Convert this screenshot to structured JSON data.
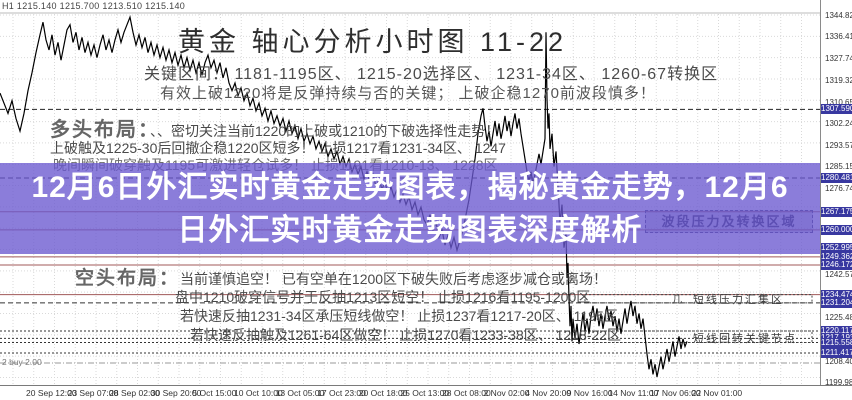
{
  "header": {
    "ohlc": "H1 1215.140 1215.700 1213.510 1215.140",
    "title": "黄金 轴心分析小时图 11-22",
    "key_zones": "关键区间： 1181-1195区、 1215-20选择区、 1231-34区、 1260-67转换区",
    "note": "有效上破1220将是反弹持续与否的关键； 上破企稳1270前波段慎多！"
  },
  "texts": {
    "bull": {
      "heading": "多头布局：",
      "line1": "、、密切关注当前1220的上破或1210的下破选择性走势！",
      "line2": "上破触及1225-30后回撤企稳1220区短多！ 止损1217看1231-34区、 1247",
      "line3": "晚间瞬间破穿触及1195可激进轻仓试多！ 止损1191看1210-13、 1228区"
    },
    "bear": {
      "heading": "空头布局：",
      "line1": "当前谨慎追空！ 已有空单在1200区下破失败后考虑逐步减仓或离场！",
      "line2": "盘中1210破穿信号并于反抽1213区短空！ 止损1216看1195-1200区",
      "line3": "若快速反抽1231-34区承压短线做空！ 止损1237看1217-20区、 1195区",
      "line4": "若快速反抽触及1261-64区做空！ 止损1270看1233-38区、 1218-22区"
    }
  },
  "banner": {
    "line1": "12月6日外汇实时黄金走势图表，揭秘黄金走势，12月6",
    "line2": "日外汇实时黄金走势图表深度解析",
    "color": "rgba(106,88,208,0.78)"
  },
  "annotations": {
    "zone_box": "波段压力及转换区域",
    "pressure": "短线压力汇集区",
    "pressure_glyph": "几",
    "pivot": "短线回转关键节点"
  },
  "trade": {
    "label": "2 buy 2.00",
    "price": 1207.5
  },
  "colors": {
    "grid": "#d9d9d9",
    "price_line": "#000000",
    "tag_navy": "#3838a0",
    "sr_maroon": "#a05858",
    "banner_purple": "rgba(106,88,208,0.78)"
  },
  "chart_data": {
    "type": "line",
    "title": "黄金 轴心分析小时图 11-22",
    "instrument_timeframe": "H1",
    "ylim": [
      1198.8,
      1350.75
    ],
    "grid": true,
    "y_ticks": [
      1344.825,
      1336.41,
      1327.74,
      1319.325,
      1310.655,
      1302.24,
      1293.57,
      1285.155,
      1276.74,
      1242.57,
      1225.485,
      1208.4,
      1199.985
    ],
    "price_tags": [
      "1307.590",
      "1280.481",
      "1267.175",
      "1260.000",
      "1252.995",
      "1249.362",
      "1246.172",
      "1234.474",
      "1231.204",
      "1220.117",
      "1217.193",
      "1215.558",
      "1211.417"
    ],
    "x_labels": [
      "20 Sep 12:00",
      "23 Sep 07:00",
      "28 Sep 02:00",
      "30 Sep 20:00",
      "5 Oct 15:00",
      "10 Oct 10:00",
      "13 Oct 05:00",
      "17 Oct 23:00",
      "20 Oct 18:00",
      "25 Oct 13:00",
      "28 Oct 08:00",
      "2 Nov 02:00",
      "4 Nov 20:00",
      "9 Nov 16:00",
      "14 Nov 11:00",
      "17 Nov 06:00",
      "22 Nov 01:00"
    ],
    "sr_lines": [
      {
        "price": 1307.59,
        "style": "dash",
        "color": "#222222"
      },
      {
        "price": 1280.481,
        "style": "dash",
        "color": "#222222"
      },
      {
        "price": 1267.175,
        "style": "solid",
        "color": "#a05858"
      },
      {
        "price": 1260.0,
        "style": "solid",
        "color": "#a05858"
      },
      {
        "price": 1249.362,
        "style": "solid",
        "color": "#a05858"
      },
      {
        "price": 1246.172,
        "style": "solid",
        "color": "#a05858"
      },
      {
        "price": 1234.474,
        "style": "solid",
        "color": "#a05858"
      },
      {
        "price": 1231.204,
        "style": "dash",
        "color": "#333333"
      },
      {
        "price": 1220.117,
        "style": "dot",
        "color": "#333333"
      },
      {
        "price": 1217.193,
        "style": "dot",
        "color": "#333333"
      },
      {
        "price": 1215.558,
        "style": "dot",
        "color": "#333333"
      },
      {
        "price": 1211.417,
        "style": "dot",
        "color": "#333333"
      },
      {
        "price": 1207.5,
        "style": "dashdot",
        "color": "#999999"
      }
    ],
    "series": [
      {
        "name": "XAUUSD price (x in plot px, y in USD)",
        "x_unit": "px",
        "points": [
          [
            0,
            1314
          ],
          [
            4,
            1310
          ],
          [
            8,
            1306
          ],
          [
            12,
            1311
          ],
          [
            16,
            1304
          ],
          [
            20,
            1299
          ],
          [
            24,
            1306
          ],
          [
            28,
            1315
          ],
          [
            32,
            1322
          ],
          [
            36,
            1330
          ],
          [
            40,
            1337
          ],
          [
            43,
            1342
          ],
          [
            46,
            1335
          ],
          [
            49,
            1331
          ],
          [
            52,
            1337
          ],
          [
            55,
            1329
          ],
          [
            58,
            1334
          ],
          [
            61,
            1327
          ],
          [
            64,
            1333
          ],
          [
            67,
            1339
          ],
          [
            70,
            1341
          ],
          [
            73,
            1334
          ],
          [
            76,
            1338
          ],
          [
            79,
            1331
          ],
          [
            82,
            1336
          ],
          [
            85,
            1330
          ],
          [
            88,
            1334
          ],
          [
            91,
            1329
          ],
          [
            94,
            1333
          ],
          [
            97,
            1328
          ],
          [
            100,
            1333
          ],
          [
            103,
            1337
          ],
          [
            106,
            1331
          ],
          [
            109,
            1335
          ],
          [
            112,
            1330
          ],
          [
            115,
            1335
          ],
          [
            118,
            1339
          ],
          [
            121,
            1334
          ],
          [
            124,
            1338
          ],
          [
            127,
            1341
          ],
          [
            130,
            1344
          ],
          [
            133,
            1338
          ],
          [
            136,
            1333
          ],
          [
            139,
            1337
          ],
          [
            142,
            1332
          ],
          [
            145,
            1336
          ],
          [
            148,
            1330
          ],
          [
            151,
            1334
          ],
          [
            154,
            1329
          ],
          [
            157,
            1333
          ],
          [
            160,
            1328
          ],
          [
            163,
            1332
          ],
          [
            166,
            1327
          ],
          [
            169,
            1331
          ],
          [
            172,
            1326
          ],
          [
            175,
            1330
          ],
          [
            178,
            1325
          ],
          [
            181,
            1329
          ],
          [
            184,
            1324
          ],
          [
            187,
            1328
          ],
          [
            190,
            1323
          ],
          [
            193,
            1327
          ],
          [
            196,
            1322
          ],
          [
            199,
            1326
          ],
          [
            202,
            1321
          ],
          [
            205,
            1326
          ],
          [
            208,
            1329
          ],
          [
            211,
            1324
          ],
          [
            214,
            1327
          ],
          [
            217,
            1322
          ],
          [
            220,
            1326
          ],
          [
            223,
            1320
          ],
          [
            226,
            1324
          ],
          [
            229,
            1318
          ],
          [
            232,
            1315
          ],
          [
            235,
            1318
          ],
          [
            238,
            1313
          ],
          [
            241,
            1316
          ],
          [
            244,
            1311
          ],
          [
            247,
            1314
          ],
          [
            250,
            1309
          ],
          [
            253,
            1312
          ],
          [
            256,
            1307
          ],
          [
            259,
            1310
          ],
          [
            262,
            1305
          ],
          [
            265,
            1308
          ],
          [
            268,
            1303
          ],
          [
            271,
            1307
          ],
          [
            274,
            1302
          ],
          [
            277,
            1305
          ],
          [
            280,
            1301
          ],
          [
            283,
            1304
          ],
          [
            286,
            1299
          ],
          [
            289,
            1303
          ],
          [
            292,
            1298
          ],
          [
            295,
            1301
          ],
          [
            298,
            1296
          ],
          [
            301,
            1300
          ],
          [
            304,
            1295
          ],
          [
            307,
            1298
          ],
          [
            310,
            1294
          ],
          [
            313,
            1297
          ],
          [
            316,
            1292
          ],
          [
            319,
            1295
          ],
          [
            322,
            1291
          ],
          [
            325,
            1294
          ],
          [
            328,
            1289
          ],
          [
            331,
            1292
          ],
          [
            334,
            1288
          ],
          [
            337,
            1291
          ],
          [
            340,
            1286
          ],
          [
            343,
            1289
          ],
          [
            346,
            1285
          ],
          [
            349,
            1288
          ],
          [
            352,
            1283
          ],
          [
            355,
            1286
          ],
          [
            358,
            1282
          ],
          [
            361,
            1285
          ],
          [
            364,
            1280
          ],
          [
            367,
            1283
          ],
          [
            370,
            1279
          ],
          [
            373,
            1282
          ],
          [
            376,
            1277
          ],
          [
            379,
            1280
          ],
          [
            382,
            1276
          ],
          [
            385,
            1279
          ],
          [
            388,
            1274
          ],
          [
            391,
            1277
          ],
          [
            394,
            1273
          ],
          [
            397,
            1276
          ],
          [
            400,
            1271
          ],
          [
            403,
            1274
          ],
          [
            406,
            1270
          ],
          [
            409,
            1273
          ],
          [
            412,
            1268
          ],
          [
            415,
            1271
          ],
          [
            418,
            1266
          ],
          [
            421,
            1269
          ],
          [
            424,
            1264
          ],
          [
            427,
            1262
          ],
          [
            430,
            1266
          ],
          [
            433,
            1260
          ],
          [
            436,
            1263
          ],
          [
            439,
            1257
          ],
          [
            442,
            1260
          ],
          [
            445,
            1254
          ],
          [
            448,
            1258
          ],
          [
            451,
            1253
          ],
          [
            454,
            1257
          ],
          [
            457,
            1252
          ],
          [
            460,
            1256
          ],
          [
            463,
            1260
          ],
          [
            466,
            1266
          ],
          [
            469,
            1272
          ],
          [
            472,
            1280
          ],
          [
            475,
            1288
          ],
          [
            478,
            1298
          ],
          [
            481,
            1305
          ],
          [
            483,
            1308
          ],
          [
            485,
            1301
          ],
          [
            487,
            1295
          ],
          [
            489,
            1299
          ],
          [
            491,
            1293
          ],
          [
            493,
            1298
          ],
          [
            495,
            1303
          ],
          [
            497,
            1297
          ],
          [
            499,
            1302
          ],
          [
            501,
            1296
          ],
          [
            503,
            1300
          ],
          [
            505,
            1305
          ],
          [
            507,
            1299
          ],
          [
            509,
            1303
          ],
          [
            511,
            1297
          ],
          [
            513,
            1302
          ],
          [
            515,
            1306
          ],
          [
            517,
            1300
          ],
          [
            519,
            1304
          ],
          [
            521,
            1298
          ],
          [
            523,
            1293
          ],
          [
            525,
            1288
          ],
          [
            527,
            1283
          ],
          [
            529,
            1279
          ],
          [
            531,
            1283
          ],
          [
            533,
            1278
          ],
          [
            535,
            1282
          ],
          [
            537,
            1286
          ],
          [
            539,
            1290
          ],
          [
            541,
            1286
          ],
          [
            543,
            1291
          ],
          [
            545,
            1296
          ],
          [
            546,
            1338
          ],
          [
            547,
            1312
          ],
          [
            548,
            1300
          ],
          [
            549,
            1306
          ],
          [
            550,
            1292
          ],
          [
            552,
            1298
          ],
          [
            554,
            1285
          ],
          [
            556,
            1291
          ],
          [
            558,
            1277
          ],
          [
            560,
            1263
          ],
          [
            562,
            1270
          ],
          [
            564,
            1253
          ],
          [
            566,
            1259
          ],
          [
            567,
            1241
          ],
          [
            568,
            1247
          ],
          [
            569,
            1233
          ],
          [
            570,
            1222
          ],
          [
            571,
            1230
          ],
          [
            572,
            1216
          ],
          [
            573,
            1225
          ],
          [
            575,
            1217
          ],
          [
            577,
            1223
          ],
          [
            579,
            1215
          ],
          [
            581,
            1221
          ],
          [
            583,
            1227
          ],
          [
            585,
            1220
          ],
          [
            587,
            1225
          ],
          [
            589,
            1219
          ],
          [
            591,
            1226
          ],
          [
            593,
            1230
          ],
          [
            595,
            1224
          ],
          [
            597,
            1229
          ],
          [
            599,
            1222
          ],
          [
            601,
            1227
          ],
          [
            603,
            1221
          ],
          [
            605,
            1226
          ],
          [
            607,
            1230
          ],
          [
            609,
            1224
          ],
          [
            611,
            1228
          ],
          [
            613,
            1222
          ],
          [
            615,
            1226
          ],
          [
            617,
            1220
          ],
          [
            619,
            1225
          ],
          [
            621,
            1219
          ],
          [
            623,
            1224
          ],
          [
            625,
            1229
          ],
          [
            627,
            1223
          ],
          [
            629,
            1228
          ],
          [
            631,
            1232
          ],
          [
            633,
            1226
          ],
          [
            635,
            1230
          ],
          [
            637,
            1223
          ],
          [
            639,
            1227
          ],
          [
            641,
            1221
          ],
          [
            643,
            1225
          ],
          [
            645,
            1218
          ],
          [
            647,
            1211
          ],
          [
            649,
            1205
          ],
          [
            651,
            1209
          ],
          [
            653,
            1203
          ],
          [
            655,
            1207
          ],
          [
            657,
            1202
          ],
          [
            659,
            1206
          ],
          [
            661,
            1210
          ],
          [
            663,
            1205
          ],
          [
            665,
            1209
          ],
          [
            667,
            1213
          ],
          [
            669,
            1208
          ],
          [
            671,
            1212
          ],
          [
            673,
            1216
          ],
          [
            675,
            1210
          ],
          [
            677,
            1214
          ],
          [
            679,
            1218
          ],
          [
            681,
            1213
          ],
          [
            683,
            1217
          ],
          [
            685,
            1214
          ],
          [
            687,
            1216
          ]
        ]
      }
    ]
  }
}
